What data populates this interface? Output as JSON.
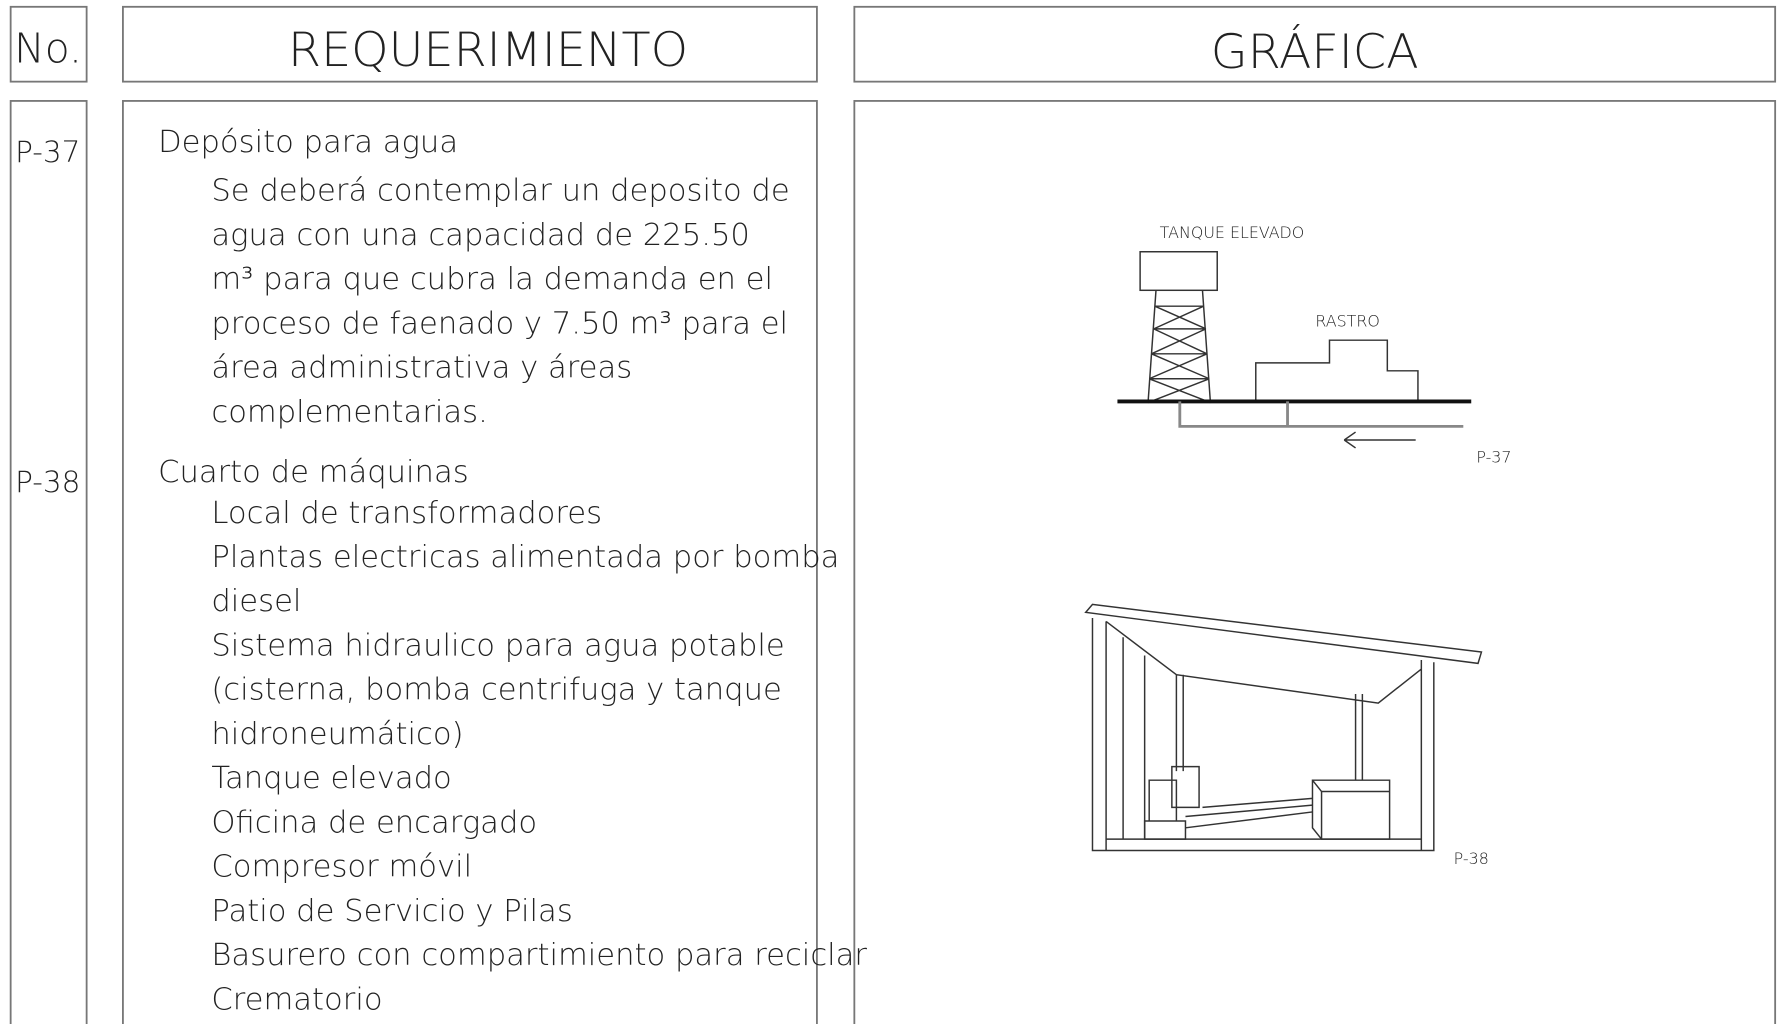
{
  "header": {
    "no": "No.",
    "requirement": "REQUERIMIENTO",
    "graphic": "GRÁFICA"
  },
  "items": [
    {
      "code": "P-37",
      "title": "Depósito para agua",
      "lines": [
        "Se deberá contemplar un deposito de",
        "agua con una capacidad de 225.50",
        "m³ para que cubra la demanda en el",
        "proceso de faenado y 7.50 m³  para el",
        "área administrativa y áreas",
        "complementarias."
      ]
    },
    {
      "code": "P-38",
      "title": "Cuarto de máquinas",
      "lines": [
        "Local de transformadores",
        "Plantas electricas alimentada por bomba",
        "diesel",
        "Sistema hidraulico para agua potable",
        "(cisterna, bomba centrifuga y tanque",
        "hidroneumático)",
        "Tanque elevado",
        "Oficina de encargado",
        "Compresor móvil",
        "Patio de Servicio y Pilas",
        "Basurero con compartimiento para reciclar",
        "Crematorio"
      ]
    }
  ],
  "graphics": {
    "tank_label": "TANQUE ELEVADO",
    "building_label": "RASTRO",
    "figure1_code": "P-37",
    "figure2_code": "P-38"
  }
}
